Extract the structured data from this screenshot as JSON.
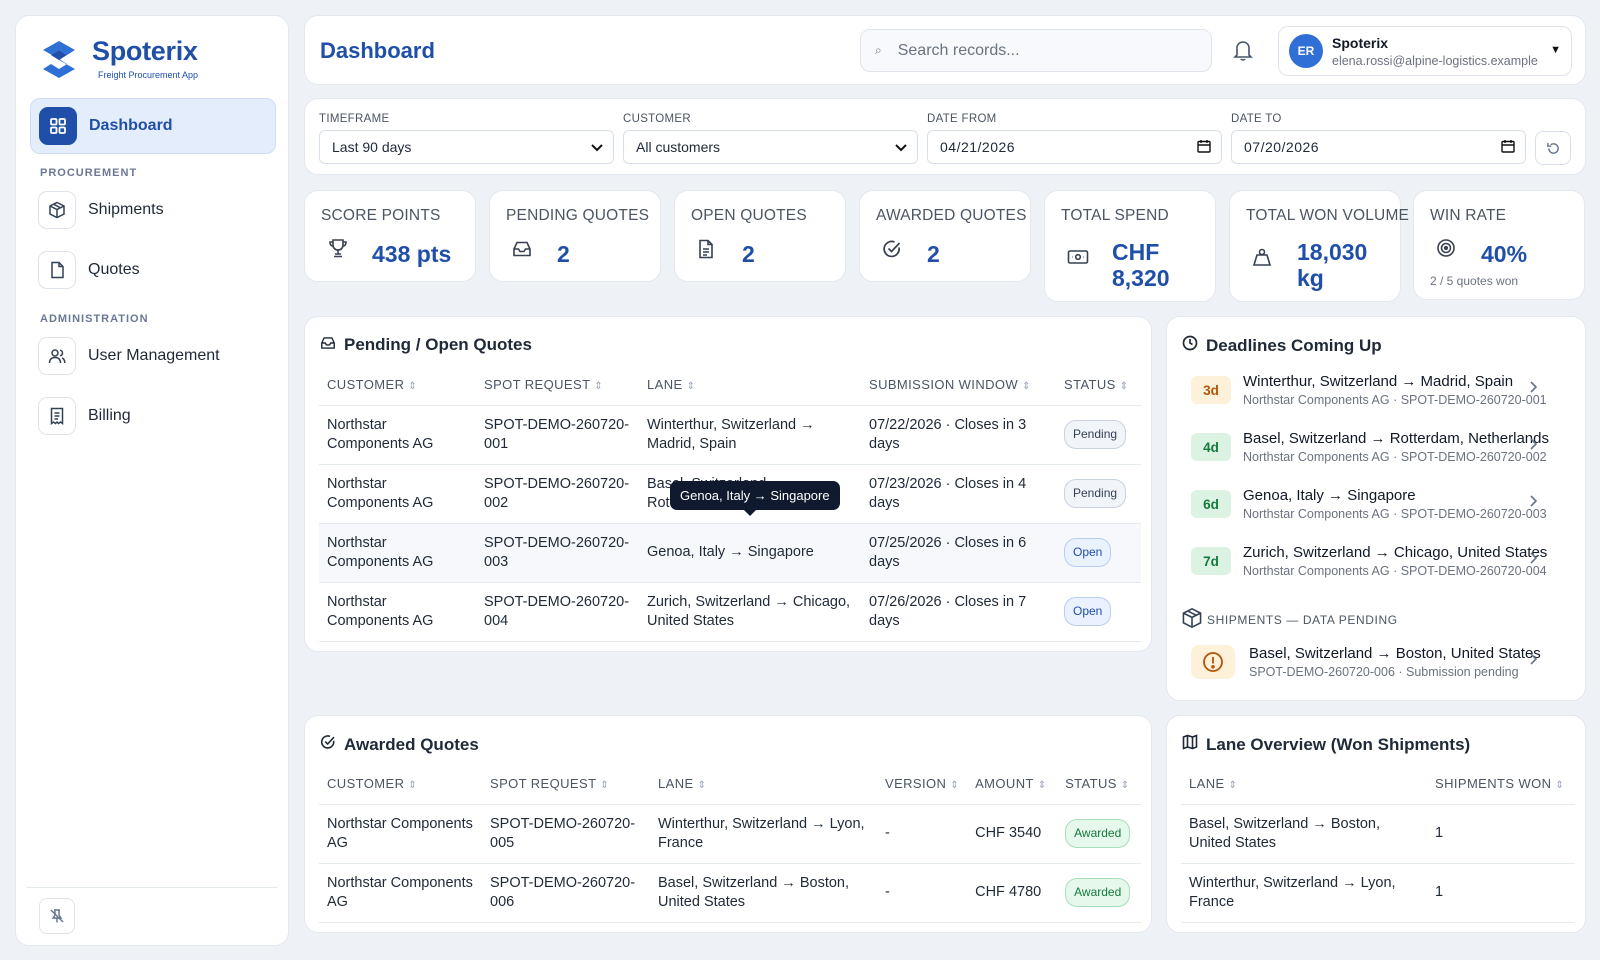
{
  "app": {
    "name": "Spoterix",
    "tagline": "Freight Procurement App",
    "brand_color": "#1f4fa8"
  },
  "sidebar": {
    "items": [
      {
        "label": "Dashboard",
        "icon": "grid-icon",
        "active": true
      },
      {
        "label": "Shipments",
        "icon": "package-icon"
      },
      {
        "label": "Quotes",
        "icon": "file-icon"
      },
      {
        "label": "User Management",
        "icon": "users-icon"
      },
      {
        "label": "Billing",
        "icon": "receipt-icon"
      }
    ],
    "sections": {
      "procurement": "PROCUREMENT",
      "administration": "ADMINISTRATION"
    }
  },
  "header": {
    "title": "Dashboard",
    "search_placeholder": "Search records...",
    "user": {
      "initials": "ER",
      "name": "Spoterix",
      "email": "elena.rossi@alpine-logistics.example"
    }
  },
  "filters": {
    "timeframe": {
      "label": "TIMEFRAME",
      "value": "Last 90 days"
    },
    "customer": {
      "label": "CUSTOMER",
      "value": "All customers"
    },
    "date_from": {
      "label": "DATE FROM",
      "value": "04/21/2026"
    },
    "date_to": {
      "label": "DATE TO",
      "value": "07/20/2026"
    }
  },
  "kpis": [
    {
      "label": "SCORE POINTS",
      "value": "438 pts",
      "icon": "trophy-icon"
    },
    {
      "label": "PENDING QUOTES",
      "value": "2",
      "icon": "inbox-icon"
    },
    {
      "label": "OPEN QUOTES",
      "value": "2",
      "icon": "document-icon"
    },
    {
      "label": "AWARDED QUOTES",
      "value": "2",
      "icon": "check-circle-icon"
    },
    {
      "label": "TOTAL SPEND",
      "value_line1": "CHF",
      "value_line2": "8,320",
      "icon": "banknote-icon"
    },
    {
      "label": "TOTAL WON VOLUME",
      "value_line1": "18,030",
      "value_line2": "kg",
      "icon": "weight-icon"
    },
    {
      "label": "WIN RATE",
      "value": "40%",
      "sub": "2 / 5 quotes won",
      "icon": "target-icon"
    }
  ],
  "pending": {
    "title": "Pending / Open Quotes",
    "columns": [
      "CUSTOMER",
      "SPOT REQUEST",
      "LANE",
      "SUBMISSION WINDOW",
      "STATUS"
    ],
    "rows": [
      {
        "customer": "Northstar Components AG",
        "spot": "SPOT-DEMO-260720-001",
        "lane": "Winterthur, Switzerland → Madrid, Spain",
        "window": "07/22/2026 · Closes in 3 days",
        "status": "Pending"
      },
      {
        "customer": "Northstar Components AG",
        "spot": "SPOT-DEMO-260720-002",
        "lane": "Basel, Switzerland → Rotterdam, Netherlands",
        "window": "07/23/2026 · Closes in 4 days",
        "status": "Pending"
      },
      {
        "customer": "Northstar Components AG",
        "spot": "SPOT-DEMO-260720-003",
        "lane": "Genoa, Italy → Singapore",
        "window": "07/25/2026 · Closes in 6 days",
        "status": "Open"
      },
      {
        "customer": "Northstar Components AG",
        "spot": "SPOT-DEMO-260720-004",
        "lane": "Zurich, Switzerland → Chicago, United States",
        "window": "07/26/2026 · Closes in 7 days",
        "status": "Open"
      }
    ],
    "tooltip": "Genoa, Italy → Singapore"
  },
  "deadlines": {
    "title": "Deadlines Coming Up",
    "items": [
      {
        "days": "3d",
        "lane": "Winterthur, Switzerland → Madrid, Spain",
        "sub": "Northstar Components AG · SPOT-DEMO-260720-001",
        "color": "#fdf2d9",
        "text_color": "#b45309"
      },
      {
        "days": "4d",
        "lane": "Basel, Switzerland → Rotterdam, Netherlands",
        "sub": "Northstar Components AG · SPOT-DEMO-260720-002",
        "color": "#dcf3e4",
        "text_color": "#157a3c"
      },
      {
        "days": "6d",
        "lane": "Genoa, Italy → Singapore",
        "sub": "Northstar Components AG · SPOT-DEMO-260720-003",
        "color": "#dcf3e4",
        "text_color": "#157a3c"
      },
      {
        "days": "7d",
        "lane": "Zurich, Switzerland → Chicago, United States",
        "sub": "Northstar Components AG · SPOT-DEMO-260720-004",
        "color": "#dcf3e4",
        "text_color": "#157a3c"
      }
    ],
    "pending_header": "SHIPMENTS — DATA PENDING",
    "pending_item": {
      "lane": "Basel, Switzerland → Boston, United States",
      "sub": "SPOT-DEMO-260720-006 · Submission pending"
    }
  },
  "awarded": {
    "title": "Awarded Quotes",
    "columns": [
      "CUSTOMER",
      "SPOT REQUEST",
      "LANE",
      "VERSION",
      "AMOUNT",
      "STATUS"
    ],
    "rows": [
      {
        "customer": "Northstar Components AG",
        "spot": "SPOT-DEMO-260720-005",
        "lane": "Winterthur, Switzerland → Lyon, France",
        "version": "-",
        "amount": "CHF 3540",
        "status": "Awarded"
      },
      {
        "customer": "Northstar Components AG",
        "spot": "SPOT-DEMO-260720-006",
        "lane": "Basel, Switzerland → Boston, United States",
        "version": "-",
        "amount": "CHF 4780",
        "status": "Awarded"
      }
    ]
  },
  "lanes": {
    "title": "Lane Overview (Won Shipments)",
    "columns": [
      "LANE",
      "SHIPMENTS WON"
    ],
    "rows": [
      {
        "lane": "Basel, Switzerland → Boston, United States",
        "won": "1"
      },
      {
        "lane": "Winterthur, Switzerland → Lyon, France",
        "won": "1"
      }
    ]
  }
}
